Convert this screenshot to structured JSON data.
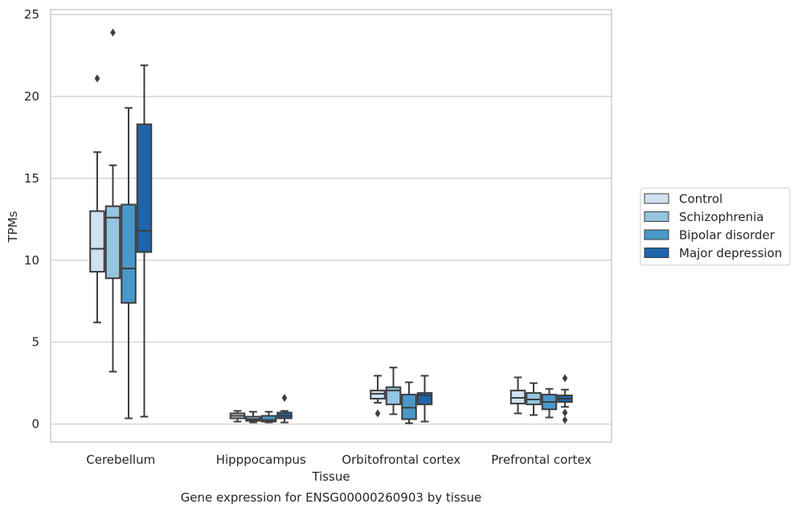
{
  "chart_data": {
    "type": "box",
    "title": "",
    "caption": "Gene expression for ENSG00000260903 by tissue",
    "xlabel": "Tissue",
    "ylabel": "TPMs",
    "ylim": [
      -1.1,
      25.3
    ],
    "yticks": [
      0,
      5,
      10,
      15,
      20,
      25
    ],
    "grid": "horizontal",
    "legend_position": "right",
    "categories": [
      "Cerebellum",
      "Hipppocampus",
      "Orbitofrontal cortex",
      "Prefrontal cortex"
    ],
    "series": [
      {
        "name": "Control",
        "color": "#d0e1f2",
        "boxes": [
          {
            "whisker_low": 6.2,
            "q1": 9.3,
            "median": 10.7,
            "q3": 13.0,
            "whisker_high": 16.6,
            "outliers": [
              21.1
            ]
          },
          {
            "whisker_low": 0.15,
            "q1": 0.35,
            "median": 0.5,
            "q3": 0.65,
            "whisker_high": 0.8,
            "outliers": []
          },
          {
            "whisker_low": 1.3,
            "q1": 1.55,
            "median": 1.85,
            "q3": 2.05,
            "whisker_high": 2.95,
            "outliers": [
              0.65
            ]
          },
          {
            "whisker_low": 0.65,
            "q1": 1.25,
            "median": 1.6,
            "q3": 2.05,
            "whisker_high": 2.85,
            "outliers": []
          }
        ]
      },
      {
        "name": "Schizophrenia",
        "color": "#94c4df",
        "boxes": [
          {
            "whisker_low": 3.2,
            "q1": 8.9,
            "median": 12.6,
            "q3": 13.3,
            "whisker_high": 15.8,
            "outliers": [
              23.9
            ]
          },
          {
            "whisker_low": 0.1,
            "q1": 0.2,
            "median": 0.3,
            "q3": 0.45,
            "whisker_high": 0.75,
            "outliers": []
          },
          {
            "whisker_low": 0.6,
            "q1": 1.2,
            "median": 2.05,
            "q3": 2.25,
            "whisker_high": 3.45,
            "outliers": []
          },
          {
            "whisker_low": 0.55,
            "q1": 1.2,
            "median": 1.5,
            "q3": 1.9,
            "whisker_high": 2.5,
            "outliers": []
          }
        ]
      },
      {
        "name": "Bipolar disorder",
        "color": "#4a98c9",
        "boxes": [
          {
            "whisker_low": 0.35,
            "q1": 7.4,
            "median": 9.5,
            "q3": 13.4,
            "whisker_high": 19.3,
            "outliers": []
          },
          {
            "whisker_low": 0.1,
            "q1": 0.15,
            "median": 0.25,
            "q3": 0.5,
            "whisker_high": 0.75,
            "outliers": []
          },
          {
            "whisker_low": 0.05,
            "q1": 0.3,
            "median": 1.0,
            "q3": 1.8,
            "whisker_high": 2.55,
            "outliers": []
          },
          {
            "whisker_low": 0.4,
            "q1": 0.9,
            "median": 1.35,
            "q3": 1.8,
            "whisker_high": 2.15,
            "outliers": []
          }
        ]
      },
      {
        "name": "Major depression",
        "color": "#2164ab",
        "boxes": [
          {
            "whisker_low": 0.45,
            "q1": 10.5,
            "median": 11.8,
            "q3": 18.3,
            "whisker_high": 21.9,
            "outliers": []
          },
          {
            "whisker_low": 0.1,
            "q1": 0.35,
            "median": 0.5,
            "q3": 0.7,
            "whisker_high": 0.8,
            "outliers": [
              1.6
            ]
          },
          {
            "whisker_low": 0.15,
            "q1": 1.2,
            "median": 1.75,
            "q3": 1.9,
            "whisker_high": 2.95,
            "outliers": []
          },
          {
            "whisker_low": 1.05,
            "q1": 1.35,
            "median": 1.55,
            "q3": 1.75,
            "whisker_high": 2.1,
            "outliers": [
              2.8,
              0.7,
              0.25
            ]
          }
        ]
      }
    ]
  }
}
